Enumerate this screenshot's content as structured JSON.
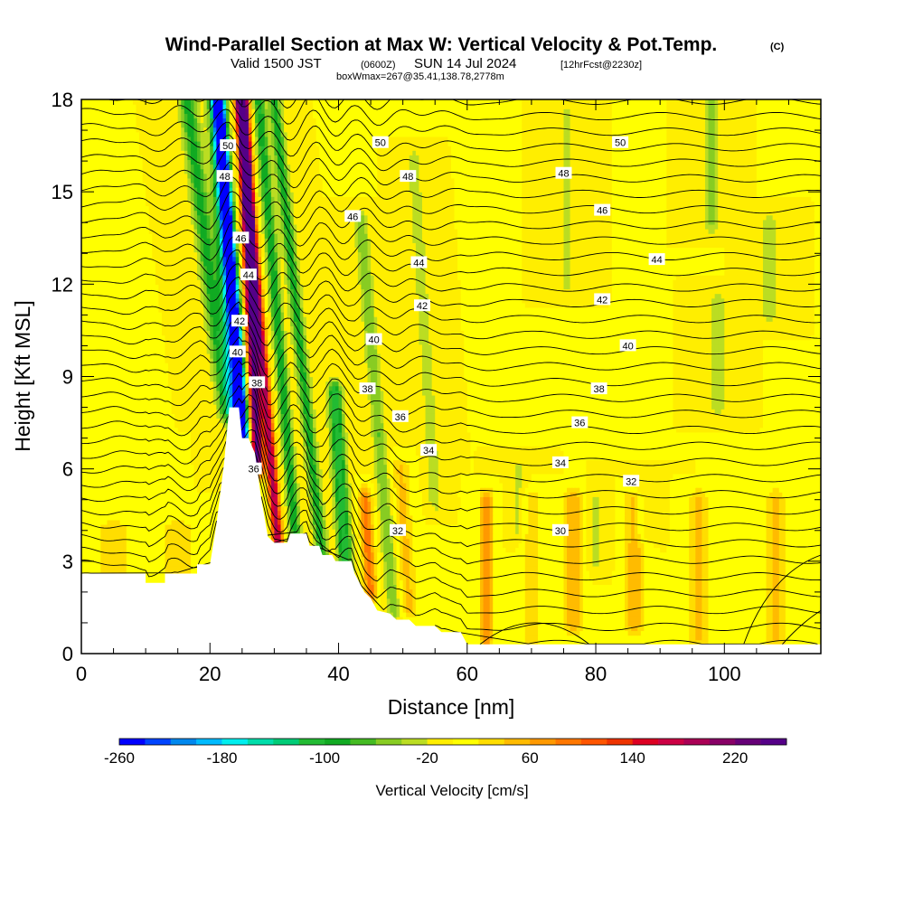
{
  "title": {
    "main": "Wind-Parallel Section at Max W: Vertical Velocity & Pot.Temp.",
    "copyright": "(C)",
    "valid_prefix": "Valid 1500 JST",
    "valid_utc": "(0600Z)",
    "valid_date": "SUN 14 Jul 2024",
    "forecast": "[12hrFcst@2230z]",
    "box_info": "boxWmax=267@35.41,138.78,2778m"
  },
  "chart_data": {
    "type": "heatmap",
    "xlabel": "Distance [nm]",
    "ylabel": "Height [Kft MSL]",
    "xlim": [
      0,
      115
    ],
    "ylim": [
      0,
      18
    ],
    "x_ticks": [
      0,
      20,
      40,
      60,
      80,
      100
    ],
    "y_ticks": [
      0,
      3,
      6,
      9,
      12,
      15,
      18
    ],
    "colorbar": {
      "title": "Vertical Velocity [cm/s]",
      "levels": [
        -260,
        260
      ],
      "step": 20,
      "labels": [
        -260,
        -180,
        -100,
        -20,
        60,
        140,
        220
      ],
      "colors": [
        "#0000ff",
        "#0044ff",
        "#0088ee",
        "#00bbff",
        "#00eeee",
        "#00ddaa",
        "#00cc77",
        "#22bb33",
        "#11aa22",
        "#44bb22",
        "#88cc22",
        "#bbdd22",
        "#ffee00",
        "#ffff00",
        "#ffdd00",
        "#ffbb00",
        "#ff9900",
        "#ff7700",
        "#ff5500",
        "#ee3300",
        "#dd0022",
        "#cc0044",
        "#aa0055",
        "#880066",
        "#660077",
        "#550088"
      ]
    },
    "background_w": 0,
    "terrain_kft": [
      [
        0,
        2.6
      ],
      [
        10,
        2.6
      ],
      [
        10,
        2.3
      ],
      [
        13,
        2.3
      ],
      [
        13,
        2.6
      ],
      [
        18,
        2.6
      ],
      [
        18,
        2.9
      ],
      [
        20,
        2.9
      ],
      [
        21,
        4.2
      ],
      [
        22.2,
        6.2
      ],
      [
        23,
        8.0
      ],
      [
        24.5,
        8.0
      ],
      [
        25,
        7.0
      ],
      [
        26,
        7.0
      ],
      [
        27,
        6.5
      ],
      [
        28,
        5.0
      ],
      [
        29,
        3.8
      ],
      [
        30,
        3.6
      ],
      [
        32,
        3.6
      ],
      [
        32.5,
        3.9
      ],
      [
        35,
        3.9
      ],
      [
        35.5,
        3.5
      ],
      [
        37,
        3.5
      ],
      [
        37.5,
        3.2
      ],
      [
        39,
        3.2
      ],
      [
        39.5,
        3.0
      ],
      [
        42,
        3.0
      ],
      [
        42.5,
        2.6
      ],
      [
        44,
        2.0
      ],
      [
        45,
        1.8
      ],
      [
        46,
        1.4
      ],
      [
        48,
        1.3
      ],
      [
        49,
        1.1
      ],
      [
        51,
        1.1
      ],
      [
        52,
        0.9
      ],
      [
        55,
        0.9
      ],
      [
        56,
        0.7
      ],
      [
        59,
        0.7
      ],
      [
        60,
        0.3
      ],
      [
        115,
        0.3
      ]
    ],
    "w_features": [
      {
        "x": 25.4,
        "y_lo": 6.6,
        "y_hi": 18.5,
        "w": -250,
        "lean": -0.35,
        "sx": 0.9
      },
      {
        "x": 27.4,
        "y_lo": 6.2,
        "y_hi": 18.5,
        "w": 250,
        "lean": -0.2,
        "sx": 0.9
      },
      {
        "x": 24.5,
        "y_lo": 6.0,
        "y_hi": 18.5,
        "w": -160,
        "lean": -0.3,
        "sx": 1.2
      },
      {
        "x": 30.6,
        "y_lo": 3.5,
        "y_hi": 18.5,
        "w": 190,
        "lean": -0.4,
        "sx": 0.8
      },
      {
        "x": 22.5,
        "y_lo": 8.0,
        "y_hi": 18.5,
        "w": -90,
        "lean": -0.6,
        "sx": 1.4
      },
      {
        "x": 33.4,
        "y_lo": 3.5,
        "y_hi": 18.5,
        "w": -100,
        "lean": -0.4,
        "sx": 0.9
      },
      {
        "x": 37.5,
        "y_lo": 3.0,
        "y_hi": 18.5,
        "w": -90,
        "lean": -0.5,
        "sx": 1.0
      },
      {
        "x": 41.2,
        "y_lo": 2.5,
        "y_hi": 8.5,
        "w": -120,
        "lean": -0.3,
        "sx": 1.1
      },
      {
        "x": 45.0,
        "y_lo": 2.0,
        "y_hi": 5.0,
        "w": 90,
        "lean": -0.3,
        "sx": 1.0
      },
      {
        "x": 48.5,
        "y_lo": 1.5,
        "y_hi": 14.0,
        "w": -60,
        "lean": -0.4,
        "sx": 1.0
      },
      {
        "x": 51.0,
        "y_lo": 1.5,
        "y_hi": 6.0,
        "w": 45,
        "lean": -0.3,
        "sx": 1.3
      },
      {
        "x": 55.0,
        "y_lo": 5.0,
        "y_hi": 16.0,
        "w": -35,
        "lean": -0.3,
        "sx": 1.0
      },
      {
        "x": 63.0,
        "y_lo": 0.5,
        "y_hi": 5.0,
        "w": 70,
        "lean": 0,
        "sx": 1.1
      },
      {
        "x": 70.0,
        "y_lo": 0.5,
        "y_hi": 5.0,
        "w": 35,
        "lean": 0,
        "sx": 1.5
      },
      {
        "x": 76.5,
        "y_lo": 1.0,
        "y_hi": 5.0,
        "w": 55,
        "lean": 0,
        "sx": 1.5
      },
      {
        "x": 86.0,
        "y_lo": 1.0,
        "y_hi": 5.0,
        "w": 55,
        "lean": 0,
        "sx": 1.5
      },
      {
        "x": 96.0,
        "y_lo": 0.5,
        "y_hi": 5.0,
        "w": 45,
        "lean": 0,
        "sx": 1.5
      },
      {
        "x": 108.0,
        "y_lo": 0.5,
        "y_hi": 5.0,
        "w": 45,
        "lean": 0,
        "sx": 1.5
      },
      {
        "x": 75.5,
        "y_lo": 12.0,
        "y_hi": 17.5,
        "w": -25,
        "lean": 0,
        "sx": 1.2
      },
      {
        "x": 98.0,
        "y_lo": 14.0,
        "y_hi": 18.5,
        "w": -45,
        "lean": 0,
        "sx": 1.2
      },
      {
        "x": 99.0,
        "y_lo": 8.0,
        "y_hi": 11.5,
        "w": -30,
        "lean": 0,
        "sx": 1.2
      },
      {
        "x": 107.0,
        "y_lo": 11.0,
        "y_hi": 14.0,
        "w": -30,
        "lean": 0,
        "sx": 1.2
      },
      {
        "x": 68.0,
        "y_lo": 4.0,
        "y_hi": 6.0,
        "w": -25,
        "lean": 0,
        "sx": 1.2
      },
      {
        "x": 80.0,
        "y_lo": 3.0,
        "y_hi": 5.0,
        "w": -25,
        "lean": 0,
        "sx": 1.5
      },
      {
        "x": 87.0,
        "y_lo": 4.0,
        "y_hi": 5.5,
        "w": -25,
        "lean": 0,
        "sx": 1.5
      },
      {
        "x": 5.0,
        "y_lo": 2.6,
        "y_hi": 4.0,
        "w": 40,
        "lean": 0,
        "sx": 2.5
      },
      {
        "x": 15.0,
        "y_lo": 2.6,
        "y_hi": 4.0,
        "w": 40,
        "lean": 0,
        "sx": 2.5
      }
    ],
    "isentrope_step_kft": 0.5,
    "contour_labels": [
      {
        "text": "50",
        "x": 22.8,
        "y": 16.5
      },
      {
        "text": "48",
        "x": 22.3,
        "y": 15.5
      },
      {
        "text": "46",
        "x": 24.8,
        "y": 13.5
      },
      {
        "text": "44",
        "x": 26.0,
        "y": 12.3
      },
      {
        "text": "42",
        "x": 24.6,
        "y": 10.8
      },
      {
        "text": "40",
        "x": 24.3,
        "y": 9.8
      },
      {
        "text": "38",
        "x": 27.3,
        "y": 8.8
      },
      {
        "text": "36",
        "x": 26.8,
        "y": 6.0
      },
      {
        "text": "50",
        "x": 46.5,
        "y": 16.6
      },
      {
        "text": "48",
        "x": 50.8,
        "y": 15.5
      },
      {
        "text": "46",
        "x": 42.2,
        "y": 14.2
      },
      {
        "text": "44",
        "x": 52.5,
        "y": 12.7
      },
      {
        "text": "42",
        "x": 53.0,
        "y": 11.3
      },
      {
        "text": "40",
        "x": 45.5,
        "y": 10.2
      },
      {
        "text": "38",
        "x": 44.5,
        "y": 8.6
      },
      {
        "text": "36",
        "x": 49.6,
        "y": 7.7
      },
      {
        "text": "34",
        "x": 54.0,
        "y": 6.6
      },
      {
        "text": "32",
        "x": 49.2,
        "y": 4.0
      },
      {
        "text": "50",
        "x": 83.8,
        "y": 16.6
      },
      {
        "text": "48",
        "x": 75.0,
        "y": 15.6
      },
      {
        "text": "46",
        "x": 81.0,
        "y": 14.4
      },
      {
        "text": "44",
        "x": 89.5,
        "y": 12.8
      },
      {
        "text": "42",
        "x": 81.0,
        "y": 11.5
      },
      {
        "text": "40",
        "x": 85.0,
        "y": 10.0
      },
      {
        "text": "38",
        "x": 80.5,
        "y": 8.6
      },
      {
        "text": "36",
        "x": 77.5,
        "y": 7.5
      },
      {
        "text": "34",
        "x": 74.5,
        "y": 6.2
      },
      {
        "text": "32",
        "x": 85.5,
        "y": 5.6
      },
      {
        "text": "30",
        "x": 74.5,
        "y": 4.0
      }
    ]
  }
}
